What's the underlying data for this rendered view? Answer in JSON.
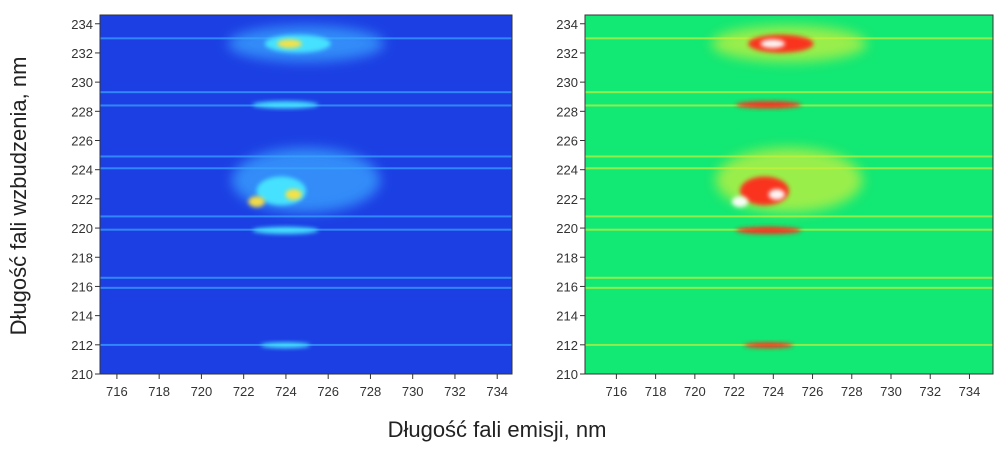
{
  "shared_labels": {
    "x": "Długość fali emisji,  nm",
    "y": "Długość fali wzbudzenia, nm"
  },
  "chart_data": [
    {
      "type": "heatmap",
      "colormap": [
        "#1c3fe3",
        "#3aa6ff",
        "#46e6ff",
        "#ffe23c"
      ],
      "xlim": [
        715.2,
        734.7
      ],
      "xticks": [
        716,
        718,
        720,
        722,
        724,
        726,
        728,
        730,
        732,
        734
      ],
      "ylim": [
        210,
        234.6
      ],
      "yticks": [
        210,
        212,
        214,
        216,
        218,
        220,
        222,
        224,
        226,
        228,
        230,
        232,
        234
      ]
    },
    {
      "type": "heatmap",
      "colormap": [
        "#12e874",
        "#c8f03c",
        "#ff2a1a",
        "#ffffff"
      ],
      "xlim": [
        714.4,
        735.2
      ],
      "xticks": [
        716,
        718,
        720,
        722,
        724,
        726,
        728,
        730,
        732,
        734
      ],
      "ylim": [
        210,
        234.6
      ],
      "yticks": [
        210,
        212,
        214,
        216,
        218,
        220,
        222,
        224,
        226,
        228,
        230,
        232,
        234
      ]
    }
  ]
}
